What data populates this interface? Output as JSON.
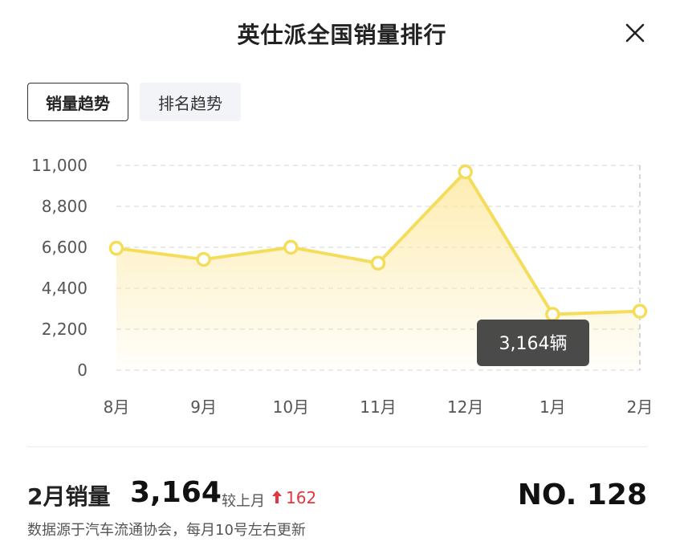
{
  "header": {
    "title": "英仕派全国销量排行"
  },
  "tabs": [
    {
      "label": "销量趋势",
      "active": true
    },
    {
      "label": "排名趋势",
      "active": false
    }
  ],
  "chart_data": {
    "type": "area",
    "categories": [
      "8月",
      "9月",
      "10月",
      "11月",
      "12月",
      "1月",
      "2月"
    ],
    "values": [
      6550,
      5950,
      6600,
      5750,
      10650,
      3000,
      3164
    ],
    "yticks": [
      "11,000",
      "8,800",
      "6,600",
      "4,400",
      "2,200",
      "0"
    ],
    "ylim": [
      0,
      11000
    ],
    "line_color": "#f5dd5c",
    "fill_color": "#fde9a3",
    "grid": true,
    "tooltip": {
      "label": "3,164辆",
      "category": "2月"
    }
  },
  "summary": {
    "sales_label": "2月销量",
    "sales_value": "3,164",
    "mom_label": "较上月",
    "mom_direction": "up",
    "mom_value": "162",
    "rank": "NO. 128",
    "source": "数据源于汽车流通协会，每月10号左右更新"
  },
  "icons": {
    "close": "close-icon",
    "trend": "arrow-up-icon"
  },
  "colors": {
    "up": "#e0383e",
    "accent": "#f5dd5c"
  }
}
